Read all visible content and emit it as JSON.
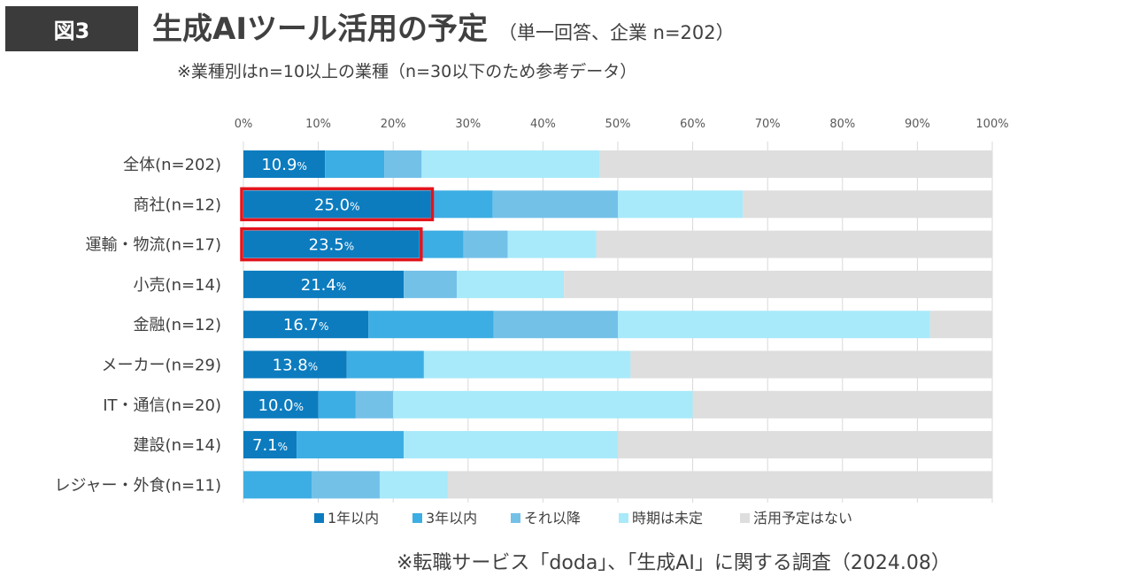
{
  "header": {
    "figure_label": "図3",
    "title": "生成AIツール活用の予定",
    "subtitle": "（単一回答、企業 n=202）",
    "note": "※業種別はn=10以上の業種（n=30以下のため参考データ）"
  },
  "footer": {
    "source": "※転職サービス「doda」、「生成AI」に関する調査（2024.08）"
  },
  "colors": {
    "highlight": "#e3141c",
    "series": [
      "#0c7cbf",
      "#3daee3",
      "#74c1e8",
      "#a8eafa",
      "#dedede"
    ]
  },
  "chart_data": {
    "type": "bar",
    "orientation": "horizontal",
    "stacked": "percent",
    "title": "生成AIツール活用の予定",
    "xlabel": "",
    "ylabel": "",
    "xlim": [
      0,
      100
    ],
    "x_ticks": [
      "0%",
      "10%",
      "20%",
      "30%",
      "40%",
      "50%",
      "60%",
      "70%",
      "80%",
      "90%",
      "100%"
    ],
    "grid": true,
    "legend_position": "bottom",
    "categories": [
      "全体(n=202)",
      "商社(n=12)",
      "運輸・物流(n=17)",
      "小売(n=14)",
      "金融(n=12)",
      "メーカー(n=29)",
      "IT・通信(n=20)",
      "建設(n=14)",
      "レジャー・外食(n=11)"
    ],
    "highlighted": [
      "商社(n=12)",
      "運輸・物流(n=17)"
    ],
    "series": [
      {
        "name": "1年以内",
        "values": [
          10.9,
          25.0,
          23.5,
          21.4,
          16.7,
          13.8,
          10.0,
          7.1,
          0.0
        ]
      },
      {
        "name": "3年以内",
        "values": [
          7.9,
          8.3,
          5.9,
          0.0,
          16.7,
          10.3,
          5.0,
          14.3,
          9.1
        ]
      },
      {
        "name": "それ以降",
        "values": [
          5.0,
          16.7,
          5.9,
          7.1,
          16.6,
          0.0,
          5.0,
          0.0,
          9.1
        ]
      },
      {
        "name": "時期は未定",
        "values": [
          23.8,
          16.7,
          11.8,
          14.3,
          41.7,
          27.6,
          40.0,
          28.6,
          9.1
        ]
      },
      {
        "name": "活用予定はない",
        "values": [
          52.4,
          33.3,
          52.9,
          57.2,
          8.3,
          48.3,
          40.0,
          50.0,
          72.7
        ]
      }
    ],
    "data_labels": [
      "10.9",
      "25.0",
      "23.5",
      "21.4",
      "16.7",
      "13.8",
      "10.0",
      "7.1",
      ""
    ],
    "data_label_unit": "%"
  }
}
